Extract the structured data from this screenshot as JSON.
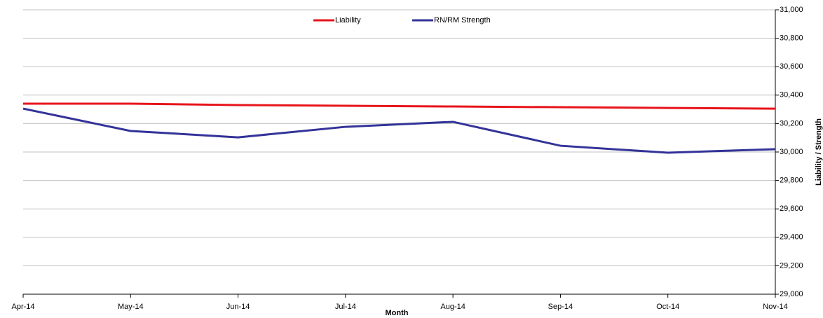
{
  "chart_data": {
    "type": "line",
    "categories": [
      "Apr-14",
      "May-14",
      "Jun-14",
      "Jul-14",
      "Aug-14",
      "Sep-14",
      "Oct-14",
      "Nov-14"
    ],
    "series": [
      {
        "name": "Liability",
        "color": "#e8141b",
        "values": [
          30340,
          30340,
          30330,
          30325,
          30320,
          30315,
          30310,
          30305
        ]
      },
      {
        "name": "RN/RM Strength",
        "color": "#333399",
        "values": [
          30305,
          30148,
          30103,
          30177,
          30212,
          30044,
          29995,
          30020
        ]
      }
    ],
    "x_label": "Month",
    "y_label": "Liability / Strength",
    "ylim": [
      29000,
      31000
    ],
    "yticks": [
      {
        "value": 29000,
        "label": "29,000"
      },
      {
        "value": 29200,
        "label": "29,200"
      },
      {
        "value": 29400,
        "label": "29,400"
      },
      {
        "value": 29600,
        "label": "29,600"
      },
      {
        "value": 29800,
        "label": "29,800"
      },
      {
        "value": 30000,
        "label": "30,000"
      },
      {
        "value": 30200,
        "label": "30,200"
      },
      {
        "value": 30400,
        "label": "30,400"
      },
      {
        "value": 30600,
        "label": "30,600"
      },
      {
        "value": 30800,
        "label": "30,800"
      },
      {
        "value": 31000,
        "label": "31,000"
      }
    ],
    "grid": true,
    "legend": "top"
  }
}
